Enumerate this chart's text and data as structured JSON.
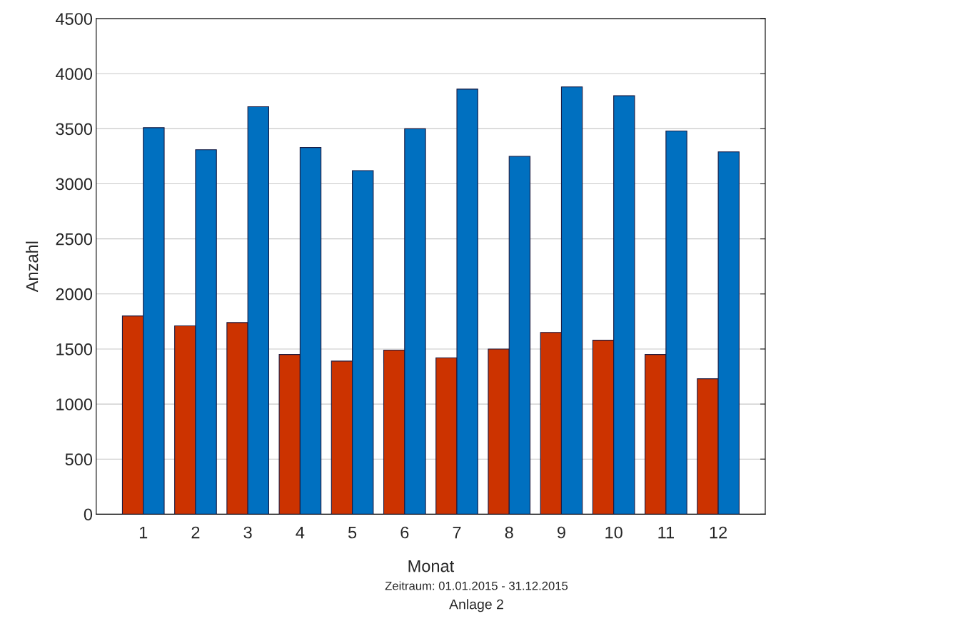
{
  "chart_data": {
    "type": "bar",
    "xlabel": "Monat",
    "ylabel": "Anzahl",
    "categories": [
      "1",
      "2",
      "3",
      "4",
      "5",
      "6",
      "7",
      "8",
      "9",
      "10",
      "11",
      "12"
    ],
    "series": [
      {
        "color": "#cc3300",
        "values": [
          1800,
          1710,
          1740,
          1450,
          1390,
          1490,
          1420,
          1500,
          1650,
          1580,
          1450,
          1230
        ]
      },
      {
        "color": "#0070c0",
        "values": [
          3510,
          3310,
          3700,
          3330,
          3120,
          3500,
          3860,
          3250,
          3880,
          3800,
          3480,
          3290
        ]
      }
    ],
    "ylim": [
      0,
      4500
    ],
    "yticks": [
      0,
      500,
      1000,
      1500,
      2000,
      2500,
      3000,
      3500,
      4000,
      4500
    ],
    "grid": "y",
    "annotations": [
      "Zeitraum: 01.01.2015 - 31.12.2015",
      "Anlage 2"
    ]
  }
}
